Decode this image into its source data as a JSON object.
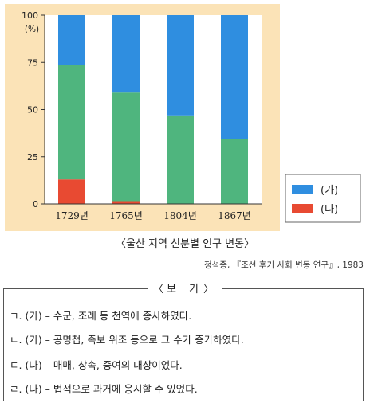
{
  "chart_data": {
    "type": "bar",
    "stacked": true,
    "categories": [
      "1729년",
      "1765년",
      "1804년",
      "1867년"
    ],
    "series": [
      {
        "name": "(나)",
        "values": [
          13,
          1.5,
          0,
          0
        ],
        "color": "#e84a32"
      },
      {
        "name": "",
        "values": [
          60.5,
          57.5,
          46.5,
          34.5
        ],
        "color": "#4fb57e"
      },
      {
        "name": "(가)",
        "values": [
          26.5,
          41,
          53.5,
          65.5
        ],
        "color": "#2f8ee0"
      }
    ],
    "y_ticks": [
      "0",
      "25",
      "50",
      "75",
      "100"
    ],
    "y_unit": "(%)",
    "ylim": [
      0,
      100
    ],
    "title": "〈울산 지역 신분별 인구 변동〉",
    "legend_position": "right",
    "legend": [
      {
        "label": "(가)",
        "color": "#2f8ee0"
      },
      {
        "label": "(나)",
        "color": "#e84a32"
      }
    ],
    "panel_color": "#fbe3b7"
  },
  "source": "정석종, 『조선 후기 사회 변동 연구』, 1983",
  "bogi": {
    "title": "보 기",
    "items": [
      "ㄱ. (가) – 수군, 조례 등 천역에 종사하였다.",
      "ㄴ. (가) – 공명첩, 족보 위조 등으로 그 수가 증가하였다.",
      "ㄷ. (나) – 매매, 상속, 증여의 대상이었다.",
      "ㄹ. (나) – 법적으로 과거에 응시할 수 있었다."
    ]
  }
}
